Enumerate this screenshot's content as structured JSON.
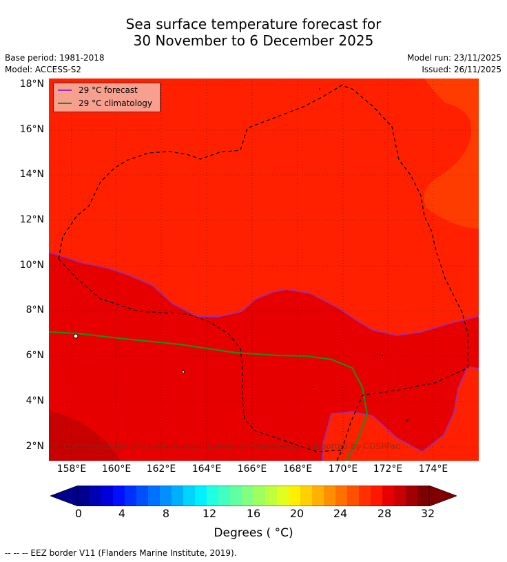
{
  "title_line1": "Sea surface temperature forecast for",
  "title_line2": "30 November to 6 December 2025",
  "base_period": "Base period: 1981-2018",
  "model": "Model: ACCESS-S2",
  "model_run": "Model run: 23/11/2025",
  "issued": "Issued: 26/11/2025",
  "lat_ticks": [
    "18°N",
    "16°N",
    "14°N",
    "12°N",
    "10°N",
    "8°N",
    "6°N",
    "4°N",
    "2°N"
  ],
  "lon_ticks": [
    "158°E",
    "160°E",
    "162°E",
    "164°E",
    "166°E",
    "168°E",
    "170°E",
    "172°E",
    "174°E"
  ],
  "legend": {
    "forecast_label": "29 °C  forecast",
    "forecast_color": "#9b2fae",
    "climatology_label": "29 °C  climatology",
    "climatology_color": "#1f8a1f"
  },
  "copyright": "© Commonwealth of Australia 2025, Bureau of Meteorology. Supported by COSPPac",
  "colorbar": {
    "ticks": [
      "0",
      "4",
      "8",
      "12",
      "16",
      "20",
      "24",
      "28",
      "32"
    ],
    "label": "Degrees ( °C)",
    "colors": [
      "#00008c",
      "#0000b4",
      "#0000dc",
      "#0010ff",
      "#0030ff",
      "#0050ff",
      "#0070ff",
      "#0090ff",
      "#00b0ff",
      "#00d4ff",
      "#00f0ff",
      "#20ffe0",
      "#40ffc0",
      "#60ffa0",
      "#80ff80",
      "#a0ff60",
      "#c0ff40",
      "#e0ff20",
      "#fff000",
      "#ffd000",
      "#ffb000",
      "#ff9000",
      "#ff7000",
      "#ff5000",
      "#ff3000",
      "#ff1800",
      "#e80000",
      "#c80000",
      "#a00000",
      "#800000"
    ]
  },
  "footer": "--  --  -- EEZ border V11 (Flanders Marine Institute, 2019)."
}
